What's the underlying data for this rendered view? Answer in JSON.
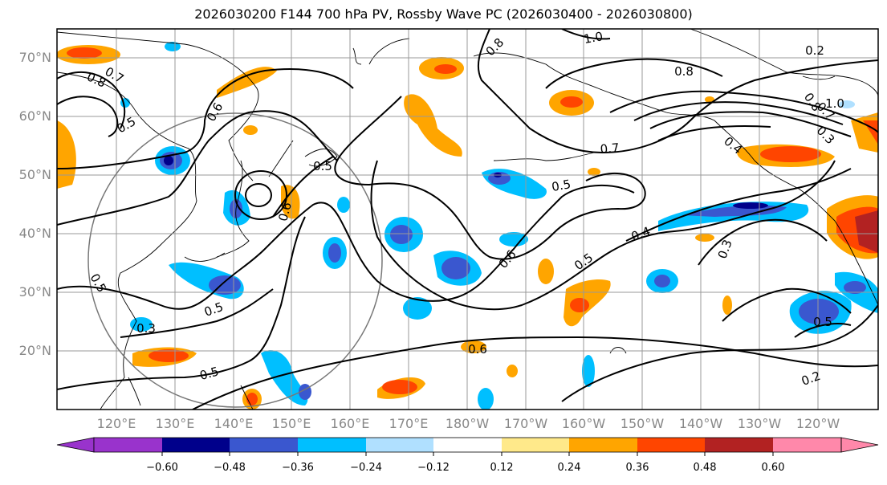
{
  "title": "2026030200 F144 700 hPa PV, Rossby Wave PC (2026030400 - 2026030800)",
  "lat_labels": [
    "70°N",
    "60°N",
    "50°N",
    "40°N",
    "30°N",
    "20°N"
  ],
  "lon_labels": [
    "120°E",
    "130°E",
    "140°E",
    "150°E",
    "160°E",
    "170°E",
    "180°W",
    "170°W",
    "160°W",
    "150°W",
    "140°W",
    "130°W",
    "120°W"
  ],
  "contour_labels": [
    "0.8",
    "0.7",
    "0.8",
    "1.0",
    "0.8",
    "0.7",
    "0.6",
    "0.5",
    "0.6",
    "0.5",
    "0.6",
    "0.5",
    "0.7",
    "0.5",
    "0.4",
    "0.5",
    "0.6",
    "0.3",
    "0.5",
    "0.5",
    "0.3",
    "0.5",
    "0.2",
    "0.2",
    "0.8",
    "1.0",
    "0.3",
    "0.4"
  ],
  "colorbar": {
    "ticks": [
      "−0.60",
      "−0.48",
      "−0.36",
      "−0.24",
      "−0.12",
      "0.12",
      "0.24",
      "0.36",
      "0.48",
      "0.60"
    ],
    "colors": [
      "#9933cc",
      "#00008b",
      "#3a57cf",
      "#00bfff",
      "#b0e0ff",
      "#ffffff",
      "#ffe98a",
      "#ffa500",
      "#ff4500",
      "#b22222",
      "#ff88aa"
    ]
  },
  "colors": {
    "neg_strong": "#00008b",
    "neg_mid": "#3a57cf",
    "neg_light": "#00bfff",
    "neg_pale": "#b0e0ff",
    "pos_pale": "#ffe98a",
    "pos_mid": "#ffa500",
    "pos_strong": "#ff4500",
    "pos_deep": "#b22222"
  }
}
